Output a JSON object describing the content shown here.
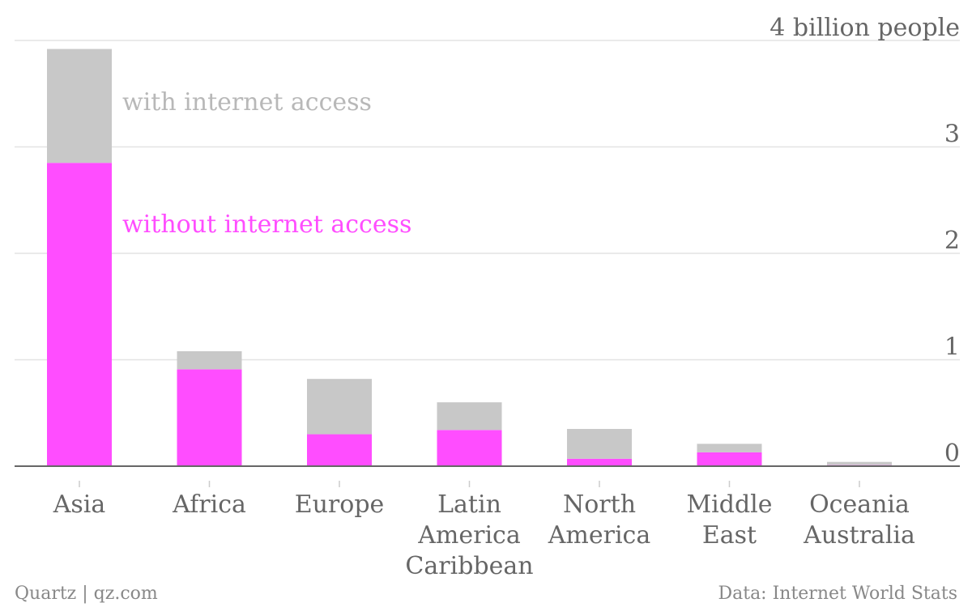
{
  "chart_data": {
    "type": "bar",
    "stacked": true,
    "ylabel": "4 billion people",
    "ylim": [
      0,
      4
    ],
    "y_ticks": [
      0,
      1,
      2,
      3
    ],
    "grid": true,
    "categories": [
      [
        "Asia"
      ],
      [
        "Africa"
      ],
      [
        "Europe"
      ],
      [
        "Latin",
        "America",
        "Caribbean"
      ],
      [
        "North",
        "America"
      ],
      [
        "Middle",
        "East"
      ],
      [
        "Oceania",
        "Australia"
      ]
    ],
    "series": [
      {
        "name": "without internet access",
        "color": "#ff4dff",
        "values": [
          2.85,
          0.91,
          0.3,
          0.34,
          0.07,
          0.13,
          0.01
        ]
      },
      {
        "name": "with internet access",
        "color": "#c8c8c8",
        "values": [
          1.07,
          0.17,
          0.52,
          0.26,
          0.28,
          0.08,
          0.03
        ]
      }
    ]
  },
  "footer": {
    "credit": "Quartz | qz.com",
    "source": "Data: Internet World Stats"
  }
}
